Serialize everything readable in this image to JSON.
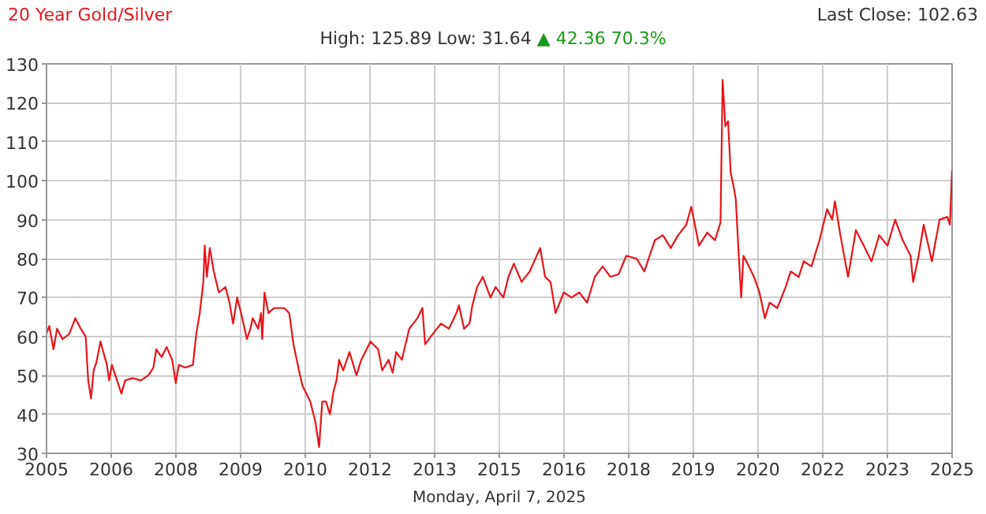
{
  "chart_data": {
    "type": "line",
    "title": "20 Year Gold/Silver",
    "subtitle": "High: 125.89 Low: 31.64",
    "annotations": [
      "▲ 42.36 70.3%",
      "Last Close: 102.63"
    ],
    "xlabel": "Monday, April 7, 2025",
    "xlim": [
      "2005-04-07",
      "2025-04-07"
    ],
    "xticks": [
      {
        "value": "2005-04-07",
        "label": "2005"
      },
      {
        "value": "2006-09-11",
        "label": "2006"
      },
      {
        "value": "2008-02-15",
        "label": "2008"
      },
      {
        "value": "2009-07-20",
        "label": "2009"
      },
      {
        "value": "2010-12-24",
        "label": "2010"
      },
      {
        "value": "2012-05-29",
        "label": "2012"
      },
      {
        "value": "2013-11-02",
        "label": "2013"
      },
      {
        "value": "2015-04-07",
        "label": "2015"
      },
      {
        "value": "2016-09-10",
        "label": "2016"
      },
      {
        "value": "2018-02-14",
        "label": "2018"
      },
      {
        "value": "2019-07-20",
        "label": "2019"
      },
      {
        "value": "2020-12-23",
        "label": "2020"
      },
      {
        "value": "2022-05-29",
        "label": "2022"
      },
      {
        "value": "2023-11-02",
        "label": "2023"
      },
      {
        "value": "2025-04-07",
        "label": "2025"
      }
    ],
    "ylim": [
      30,
      130
    ],
    "yticks": [
      30,
      40,
      50,
      60,
      70,
      80,
      90,
      100,
      110,
      120,
      130
    ],
    "grid": true,
    "line_style": "solid",
    "series": [
      {
        "color": "#e8141b",
        "x": [
          "2005-04-07",
          "2005-04-29",
          "2005-06-02",
          "2005-07-01",
          "2005-08-14",
          "2005-10-08",
          "2005-11-25",
          "2006-01-08",
          "2006-02-17",
          "2006-03-09",
          "2006-04-01",
          "2006-04-22",
          "2006-05-14",
          "2006-06-16",
          "2006-08-07",
          "2006-08-25",
          "2006-09-16",
          "2006-10-28",
          "2006-12-02",
          "2007-01-01",
          "2007-03-02",
          "2007-05-07",
          "2007-07-08",
          "2007-08-17",
          "2007-09-09",
          "2007-10-22",
          "2007-12-02",
          "2008-01-15",
          "2008-02-14",
          "2008-03-09",
          "2008-04-28",
          "2008-07-01",
          "2008-07-28",
          "2008-08-25",
          "2008-09-23",
          "2008-10-04",
          "2008-10-22",
          "2008-11-14",
          "2008-12-16",
          "2009-01-26",
          "2009-03-20",
          "2009-04-22",
          "2009-05-21",
          "2009-06-23",
          "2009-08-03",
          "2009-09-09",
          "2009-10-08",
          "2009-10-26",
          "2009-12-09",
          "2010-01-01",
          "2010-01-11",
          "2010-01-29",
          "2010-03-02",
          "2010-04-15",
          "2010-07-08",
          "2010-08-17",
          "2010-09-20",
          "2010-11-03",
          "2010-12-02",
          "2011-02-03",
          "2011-03-16",
          "2011-04-15",
          "2011-05-10",
          "2011-06-09",
          "2011-07-11",
          "2011-08-10",
          "2011-09-02",
          "2011-09-23",
          "2011-10-26",
          "2011-12-16",
          "2012-02-10",
          "2012-03-20",
          "2012-06-02",
          "2012-08-03",
          "2012-09-05",
          "2012-10-26",
          "2012-11-28",
          "2012-12-27",
          "2013-02-10",
          "2013-04-11",
          "2013-06-16",
          "2013-07-26",
          "2013-08-17",
          "2013-10-19",
          "2013-12-23",
          "2014-02-25",
          "2014-04-26",
          "2014-05-17",
          "2014-06-27",
          "2014-08-10",
          "2014-09-02",
          "2014-10-11",
          "2014-11-25",
          "2015-01-26",
          "2015-03-09",
          "2015-05-10",
          "2015-06-20",
          "2015-08-03",
          "2015-10-04",
          "2015-12-09",
          "2016-03-02",
          "2016-04-11",
          "2016-05-25",
          "2016-07-04",
          "2016-09-09",
          "2016-11-10",
          "2017-01-11",
          "2017-03-16",
          "2017-05-17",
          "2017-07-19",
          "2017-09-20",
          "2017-11-25",
          "2018-01-26",
          "2018-04-19",
          "2018-06-20",
          "2018-09-13",
          "2018-11-17",
          "2019-01-19",
          "2019-03-20",
          "2019-05-25",
          "2019-07-04",
          "2019-09-05",
          "2019-11-10",
          "2020-01-11",
          "2020-02-25",
          "2020-03-13",
          "2020-04-04",
          "2020-04-26",
          "2020-05-17",
          "2020-06-05",
          "2020-06-27",
          "2020-07-19",
          "2020-08-10",
          "2020-08-28",
          "2020-10-11",
          "2020-11-21",
          "2021-01-04",
          "2021-02-17",
          "2021-03-27",
          "2021-05-28",
          "2021-08-03",
          "2021-09-13",
          "2021-11-17",
          "2021-12-27",
          "2022-02-28",
          "2022-05-03",
          "2022-07-04",
          "2022-08-14",
          "2022-09-05",
          "2022-10-19",
          "2022-12-20",
          "2023-02-21",
          "2023-04-26",
          "2023-06-27",
          "2023-08-28",
          "2023-11-03",
          "2024-01-04",
          "2024-03-05",
          "2024-05-07",
          "2024-05-28",
          "2024-07-11",
          "2024-08-21",
          "2024-10-26",
          "2024-12-27",
          "2025-02-28",
          "2025-03-20",
          "2025-04-07"
        ],
        "values": [
          60.7,
          62.7,
          56.7,
          62.0,
          59.3,
          60.7,
          64.7,
          62.0,
          60.0,
          48.7,
          44.1,
          51.3,
          53.3,
          58.7,
          52.7,
          48.7,
          52.7,
          48.7,
          45.3,
          48.7,
          49.3,
          48.7,
          50.0,
          52.0,
          56.7,
          54.7,
          57.3,
          54.0,
          48.0,
          52.7,
          52.0,
          52.7,
          60.7,
          66.0,
          74.0,
          83.3,
          75.3,
          82.7,
          76.7,
          71.3,
          72.7,
          68.7,
          63.3,
          70.0,
          64.7,
          59.3,
          62.0,
          64.7,
          62.0,
          66.0,
          59.3,
          71.3,
          66.0,
          67.3,
          67.3,
          66.0,
          58.0,
          51.3,
          47.3,
          43.3,
          38.0,
          31.6,
          43.3,
          43.3,
          40.0,
          46.0,
          48.7,
          54.0,
          51.3,
          56.0,
          50.0,
          54.0,
          58.7,
          56.7,
          51.3,
          54.0,
          50.7,
          56.0,
          54.0,
          62.0,
          64.7,
          67.3,
          58.0,
          60.7,
          63.3,
          62.0,
          66.0,
          68.0,
          62.0,
          63.3,
          68.0,
          72.7,
          75.3,
          70.0,
          72.7,
          70.0,
          75.3,
          78.7,
          74.0,
          76.7,
          82.7,
          75.3,
          74.0,
          66.0,
          71.3,
          70.0,
          71.3,
          68.7,
          75.3,
          78.0,
          75.3,
          76.0,
          80.7,
          80.0,
          76.7,
          84.7,
          86.0,
          82.7,
          86.0,
          88.7,
          93.3,
          83.3,
          86.7,
          84.7,
          89.3,
          125.9,
          114.0,
          115.3,
          102.0,
          99.3,
          95.3,
          82.0,
          70.0,
          80.7,
          78.0,
          75.3,
          71.3,
          64.7,
          68.7,
          67.3,
          72.7,
          76.7,
          75.3,
          79.3,
          78.0,
          84.7,
          92.7,
          90.0,
          94.7,
          86.0,
          75.3,
          87.3,
          83.3,
          79.3,
          86.0,
          83.3,
          90.0,
          84.7,
          80.7,
          74.0,
          80.7,
          88.7,
          79.3,
          90.0,
          90.7,
          88.7,
          102.6
        ]
      }
    ]
  }
}
